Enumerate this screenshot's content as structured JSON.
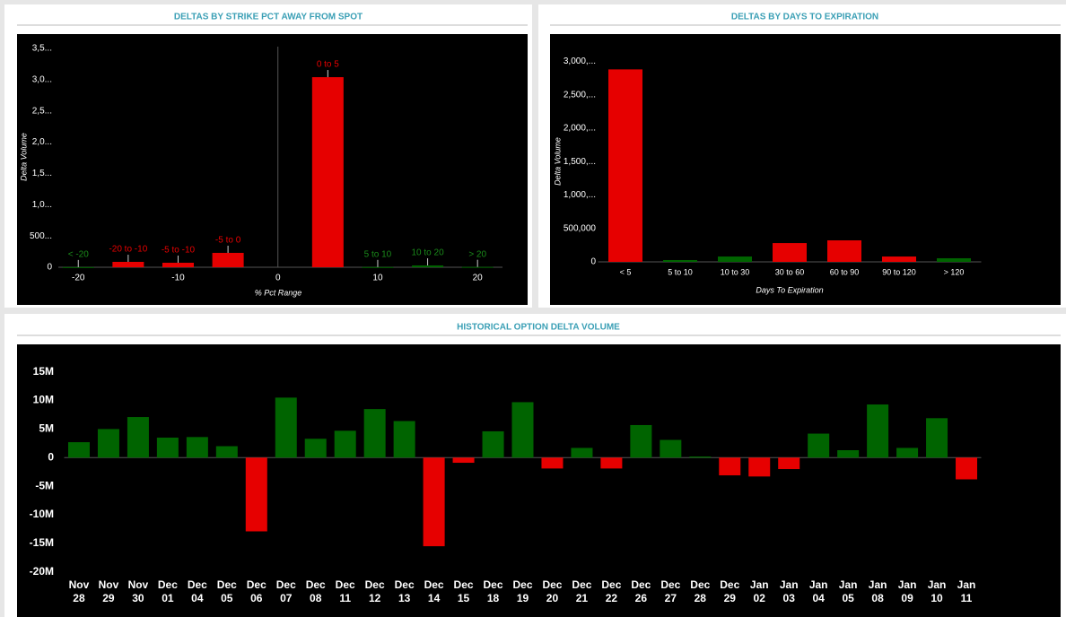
{
  "chart_data": [
    {
      "type": "bar",
      "title": "DELTAS BY STRIKE PCT AWAY FROM SPOT",
      "y_label": "Delta Volume",
      "x_label": "% Pct Range",
      "categories": [
        "< -20",
        "-20 to -10",
        "-5 to -10",
        "-5 to 0",
        "0 to 5",
        "5 to 10",
        "10 to 20",
        "> 20"
      ],
      "x": [
        -20,
        -15,
        -10,
        -5,
        5,
        10,
        15,
        20
      ],
      "values": [
        2000,
        86000,
        72000,
        230000,
        3040000,
        3000,
        29000,
        5000
      ],
      "colors": [
        "#1a8a1a",
        "#e60000",
        "#e60000",
        "#e60000",
        "#e60000",
        "#1a8a1a",
        "#1a8a1a",
        "#1a8a1a"
      ],
      "bar_colors": [
        "#006400",
        "#e60000",
        "#e60000",
        "#e60000",
        "#e60000",
        "#006400",
        "#006400",
        "#006400"
      ],
      "xlim": [
        -22,
        22.5
      ],
      "xticks": [
        -20,
        -10,
        0,
        10,
        20
      ],
      "ylim": [
        0,
        3600000
      ],
      "yticks": [
        0,
        {
          "value": 500000,
          "label": "500..."
        },
        {
          "value": 1000000,
          "label": "1,0..."
        },
        {
          "value": 1500000,
          "label": "1,5..."
        },
        {
          "value": 2000000,
          "label": "2,0..."
        },
        {
          "value": 2500000,
          "label": "2,5..."
        },
        {
          "value": 3000000,
          "label": "3,0..."
        },
        {
          "value": 3500000,
          "label": "3,5..."
        }
      ]
    },
    {
      "type": "bar",
      "title": "DELTAS BY DAYS TO EXPIRATION",
      "y_label": "Delta Volume",
      "x_label": "Days To Expiration",
      "categories": [
        "< 5",
        "5 to 10",
        "10 to 30",
        "30 to 60",
        "60 to 90",
        "90 to 120",
        "> 120"
      ],
      "values": [
        2880000,
        27000,
        80000,
        281000,
        322000,
        80000,
        54000
      ],
      "bar_colors": [
        "#e60000",
        "#006400",
        "#006400",
        "#e60000",
        "#e60000",
        "#e60000",
        "#006400"
      ],
      "ylim": [
        0,
        3100000
      ],
      "yticks": [
        0,
        {
          "value": 500000,
          "label": "500,000"
        },
        {
          "value": 1000000,
          "label": "1,000,..."
        },
        {
          "value": 1500000,
          "label": "1,500,..."
        },
        {
          "value": 2000000,
          "label": "2,000,..."
        },
        {
          "value": 2500000,
          "label": "2,500,..."
        },
        {
          "value": 3000000,
          "label": "3,000,..."
        }
      ]
    },
    {
      "type": "bar",
      "title": "HISTORICAL OPTION DELTA VOLUME",
      "categories": [
        "Nov 28",
        "Nov 29",
        "Nov 30",
        "Dec 01",
        "Dec 04",
        "Dec 05",
        "Dec 06",
        "Dec 07",
        "Dec 08",
        "Dec 11",
        "Dec 12",
        "Dec 13",
        "Dec 14",
        "Dec 15",
        "Dec 18",
        "Dec 19",
        "Dec 20",
        "Dec 21",
        "Dec 22",
        "Dec 26",
        "Dec 27",
        "Dec 28",
        "Dec 29",
        "Jan 02",
        "Jan 03",
        "Jan 04",
        "Jan 05",
        "Jan 08",
        "Jan 09",
        "Jan 10",
        "Jan 11"
      ],
      "values": [
        2700000,
        5000000,
        7100000,
        3500000,
        3600000,
        2000000,
        -12900000,
        10500000,
        3300000,
        4700000,
        8500000,
        6400000,
        -15500000,
        -900000,
        4600000,
        9700000,
        -1900000,
        1700000,
        -1900000,
        5700000,
        3100000,
        200000,
        -3100000,
        -3300000,
        -2000000,
        4200000,
        1300000,
        9300000,
        1700000,
        6900000,
        -3800000
      ],
      "positive_color": "#006400",
      "negative_color": "#e60000",
      "ylim": [
        -26000000,
        19500000
      ],
      "yticks": [
        {
          "value": -20000000,
          "label": "-20M"
        },
        {
          "value": -15000000,
          "label": "-15M"
        },
        {
          "value": -10000000,
          "label": "-10M"
        },
        {
          "value": -5000000,
          "label": "-5M"
        },
        0,
        {
          "value": 5000000,
          "label": "5M"
        },
        {
          "value": 10000000,
          "label": "10M"
        },
        {
          "value": 15000000,
          "label": "15M"
        }
      ]
    }
  ]
}
